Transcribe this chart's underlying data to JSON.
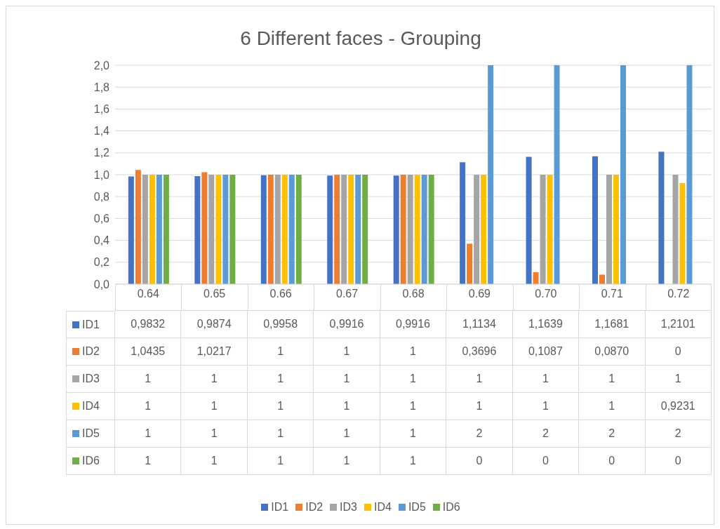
{
  "chart_data": {
    "type": "bar",
    "title": "6 Different faces - Grouping",
    "categories": [
      "0.64",
      "0.65",
      "0.66",
      "0.67",
      "0.68",
      "0.69",
      "0.70",
      "0.71",
      "0.72"
    ],
    "series": [
      {
        "name": "ID1",
        "color": "#4472c4",
        "values": [
          0.9832,
          0.9874,
          0.9958,
          0.9916,
          0.9916,
          1.1134,
          1.1639,
          1.1681,
          1.2101
        ],
        "value_labels": [
          "0,9832",
          "0,9874",
          "0,9958",
          "0,9916",
          "0,9916",
          "1,1134",
          "1,1639",
          "1,1681",
          "1,2101"
        ]
      },
      {
        "name": "ID2",
        "color": "#ed7d31",
        "values": [
          1.0435,
          1.0217,
          1,
          1,
          1,
          0.3696,
          0.1087,
          0.087,
          0
        ],
        "value_labels": [
          "1,0435",
          "1,0217",
          "1",
          "1",
          "1",
          "0,3696",
          "0,1087",
          "0,0870",
          "0"
        ]
      },
      {
        "name": "ID3",
        "color": "#a5a5a5",
        "values": [
          1,
          1,
          1,
          1,
          1,
          1,
          1,
          1,
          1
        ],
        "value_labels": [
          "1",
          "1",
          "1",
          "1",
          "1",
          "1",
          "1",
          "1",
          "1"
        ]
      },
      {
        "name": "ID4",
        "color": "#ffc000",
        "values": [
          1,
          1,
          1,
          1,
          1,
          1,
          1,
          1,
          0.9231
        ],
        "value_labels": [
          "1",
          "1",
          "1",
          "1",
          "1",
          "1",
          "1",
          "1",
          "0,9231"
        ]
      },
      {
        "name": "ID5",
        "color": "#5b9bd5",
        "values": [
          1,
          1,
          1,
          1,
          1,
          2,
          2,
          2,
          2
        ],
        "value_labels": [
          "1",
          "1",
          "1",
          "1",
          "1",
          "2",
          "2",
          "2",
          "2"
        ]
      },
      {
        "name": "ID6",
        "color": "#70ad47",
        "values": [
          1,
          1,
          1,
          1,
          1,
          0,
          0,
          0,
          0
        ],
        "value_labels": [
          "1",
          "1",
          "1",
          "1",
          "1",
          "0",
          "0",
          "0",
          "0"
        ]
      }
    ],
    "ylim": [
      0,
      2
    ],
    "yticks": [
      {
        "value": 0,
        "label": "0,0"
      },
      {
        "value": 0.2,
        "label": "0,2"
      },
      {
        "value": 0.4,
        "label": "0,4"
      },
      {
        "value": 0.6,
        "label": "0,6"
      },
      {
        "value": 0.8,
        "label": "0,8"
      },
      {
        "value": 1,
        "label": "1,0"
      },
      {
        "value": 1.2,
        "label": "1,2"
      },
      {
        "value": 1.4,
        "label": "1,4"
      },
      {
        "value": 1.6,
        "label": "1,6"
      },
      {
        "value": 1.8,
        "label": "1,8"
      },
      {
        "value": 2,
        "label": "2,0"
      }
    ],
    "grid": "y",
    "legend": "bottom"
  }
}
